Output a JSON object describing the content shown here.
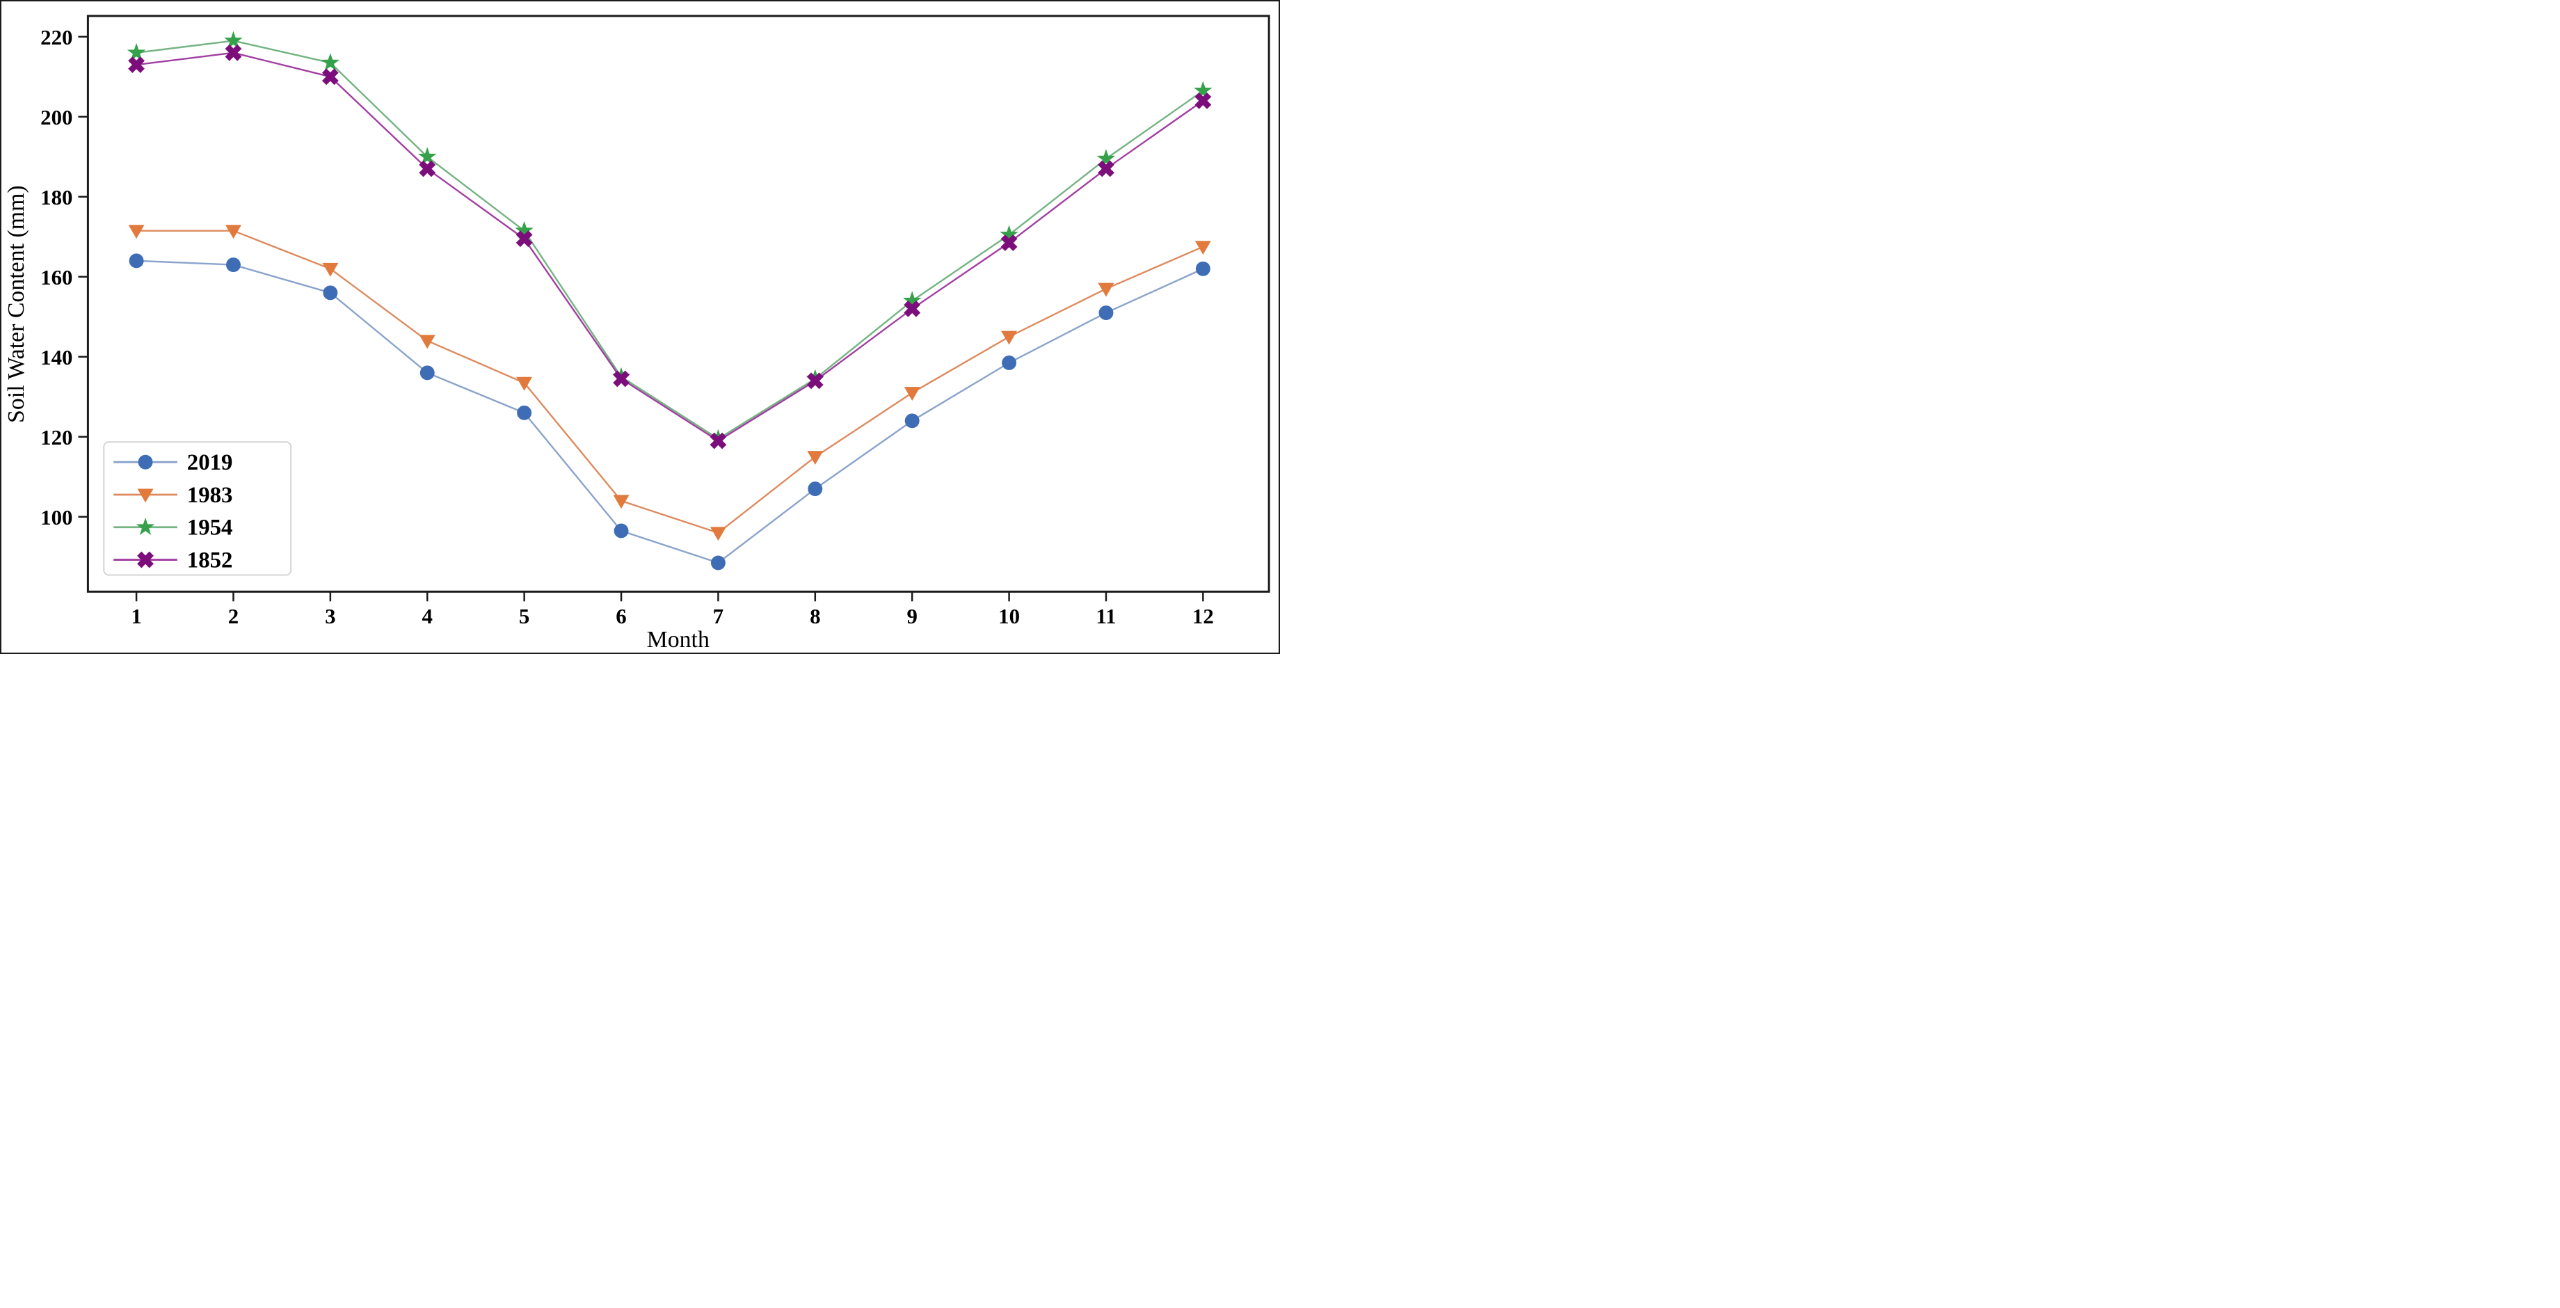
{
  "figure": {
    "background": "#ffffff",
    "border_color": "#1b1b1b"
  },
  "chart_data": {
    "type": "line",
    "title": "",
    "xlabel": "Month",
    "ylabel": "Soil Water Content (mm)",
    "x": [
      1,
      2,
      3,
      4,
      5,
      6,
      7,
      8,
      9,
      10,
      11,
      12
    ],
    "x_tick_labels": [
      "1",
      "2",
      "3",
      "4",
      "5",
      "6",
      "7",
      "8",
      "9",
      "10",
      "11",
      "12"
    ],
    "y_ticks": [
      100,
      120,
      140,
      160,
      180,
      200,
      220
    ],
    "xlim": [
      0.5,
      12.68
    ],
    "ylim": [
      81.3,
      225.2
    ],
    "grid": false,
    "legend_position": "lower-left",
    "series": [
      {
        "name": "2019",
        "marker": "circle",
        "line_color": "#8aa3cb",
        "marker_color": "#3e6db5",
        "values": [
          164,
          163,
          156,
          136,
          126,
          96.5,
          88.5,
          107,
          124,
          138.5,
          151,
          162
        ]
      },
      {
        "name": "1983",
        "marker": "triangle-down",
        "line_color": "#dd8a5e",
        "marker_color": "#e17a3c",
        "values": [
          171.5,
          171.5,
          162,
          144,
          133.5,
          104,
          96,
          115,
          131,
          145,
          157,
          167.5
        ]
      },
      {
        "name": "1954",
        "marker": "star",
        "line_color": "#74b382",
        "marker_color": "#36a14b",
        "values": [
          216,
          219,
          213.5,
          190,
          171.5,
          135,
          119.5,
          134.5,
          154,
          170.5,
          189.5,
          206.5
        ]
      },
      {
        "name": "1852",
        "marker": "x-filled",
        "line_color": "#a23da2",
        "marker_color": "#7c0e7c",
        "values": [
          213,
          216,
          210,
          187,
          169.5,
          134.5,
          119,
          134,
          152,
          168.5,
          187,
          204
        ]
      }
    ]
  }
}
